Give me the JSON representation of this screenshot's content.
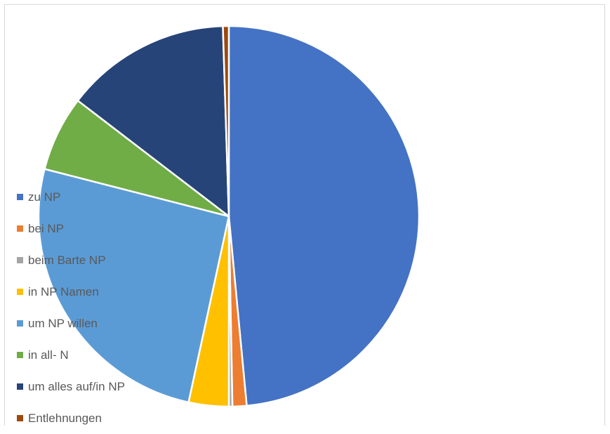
{
  "chart_data": {
    "type": "pie",
    "title": "",
    "legend_position": "left",
    "series": [
      {
        "name": "zu NP",
        "value": 48.5,
        "color": "#4472c4"
      },
      {
        "name": "bei NP",
        "value": 1.2,
        "color": "#ed7d31"
      },
      {
        "name": "beim Barte NP",
        "value": 0.3,
        "color": "#a5a5a5"
      },
      {
        "name": "in NP Namen",
        "value": 3.4,
        "color": "#ffc000"
      },
      {
        "name": "um NP willen",
        "value": 25.6,
        "color": "#5b9bd5"
      },
      {
        "name": "in all- N",
        "value": 6.4,
        "color": "#70ad47"
      },
      {
        "name": "um alles auf/in NP",
        "value": 14.1,
        "color": "#264478"
      },
      {
        "name": "Entlehnungen",
        "value": 0.5,
        "color": "#9e480e"
      }
    ]
  }
}
